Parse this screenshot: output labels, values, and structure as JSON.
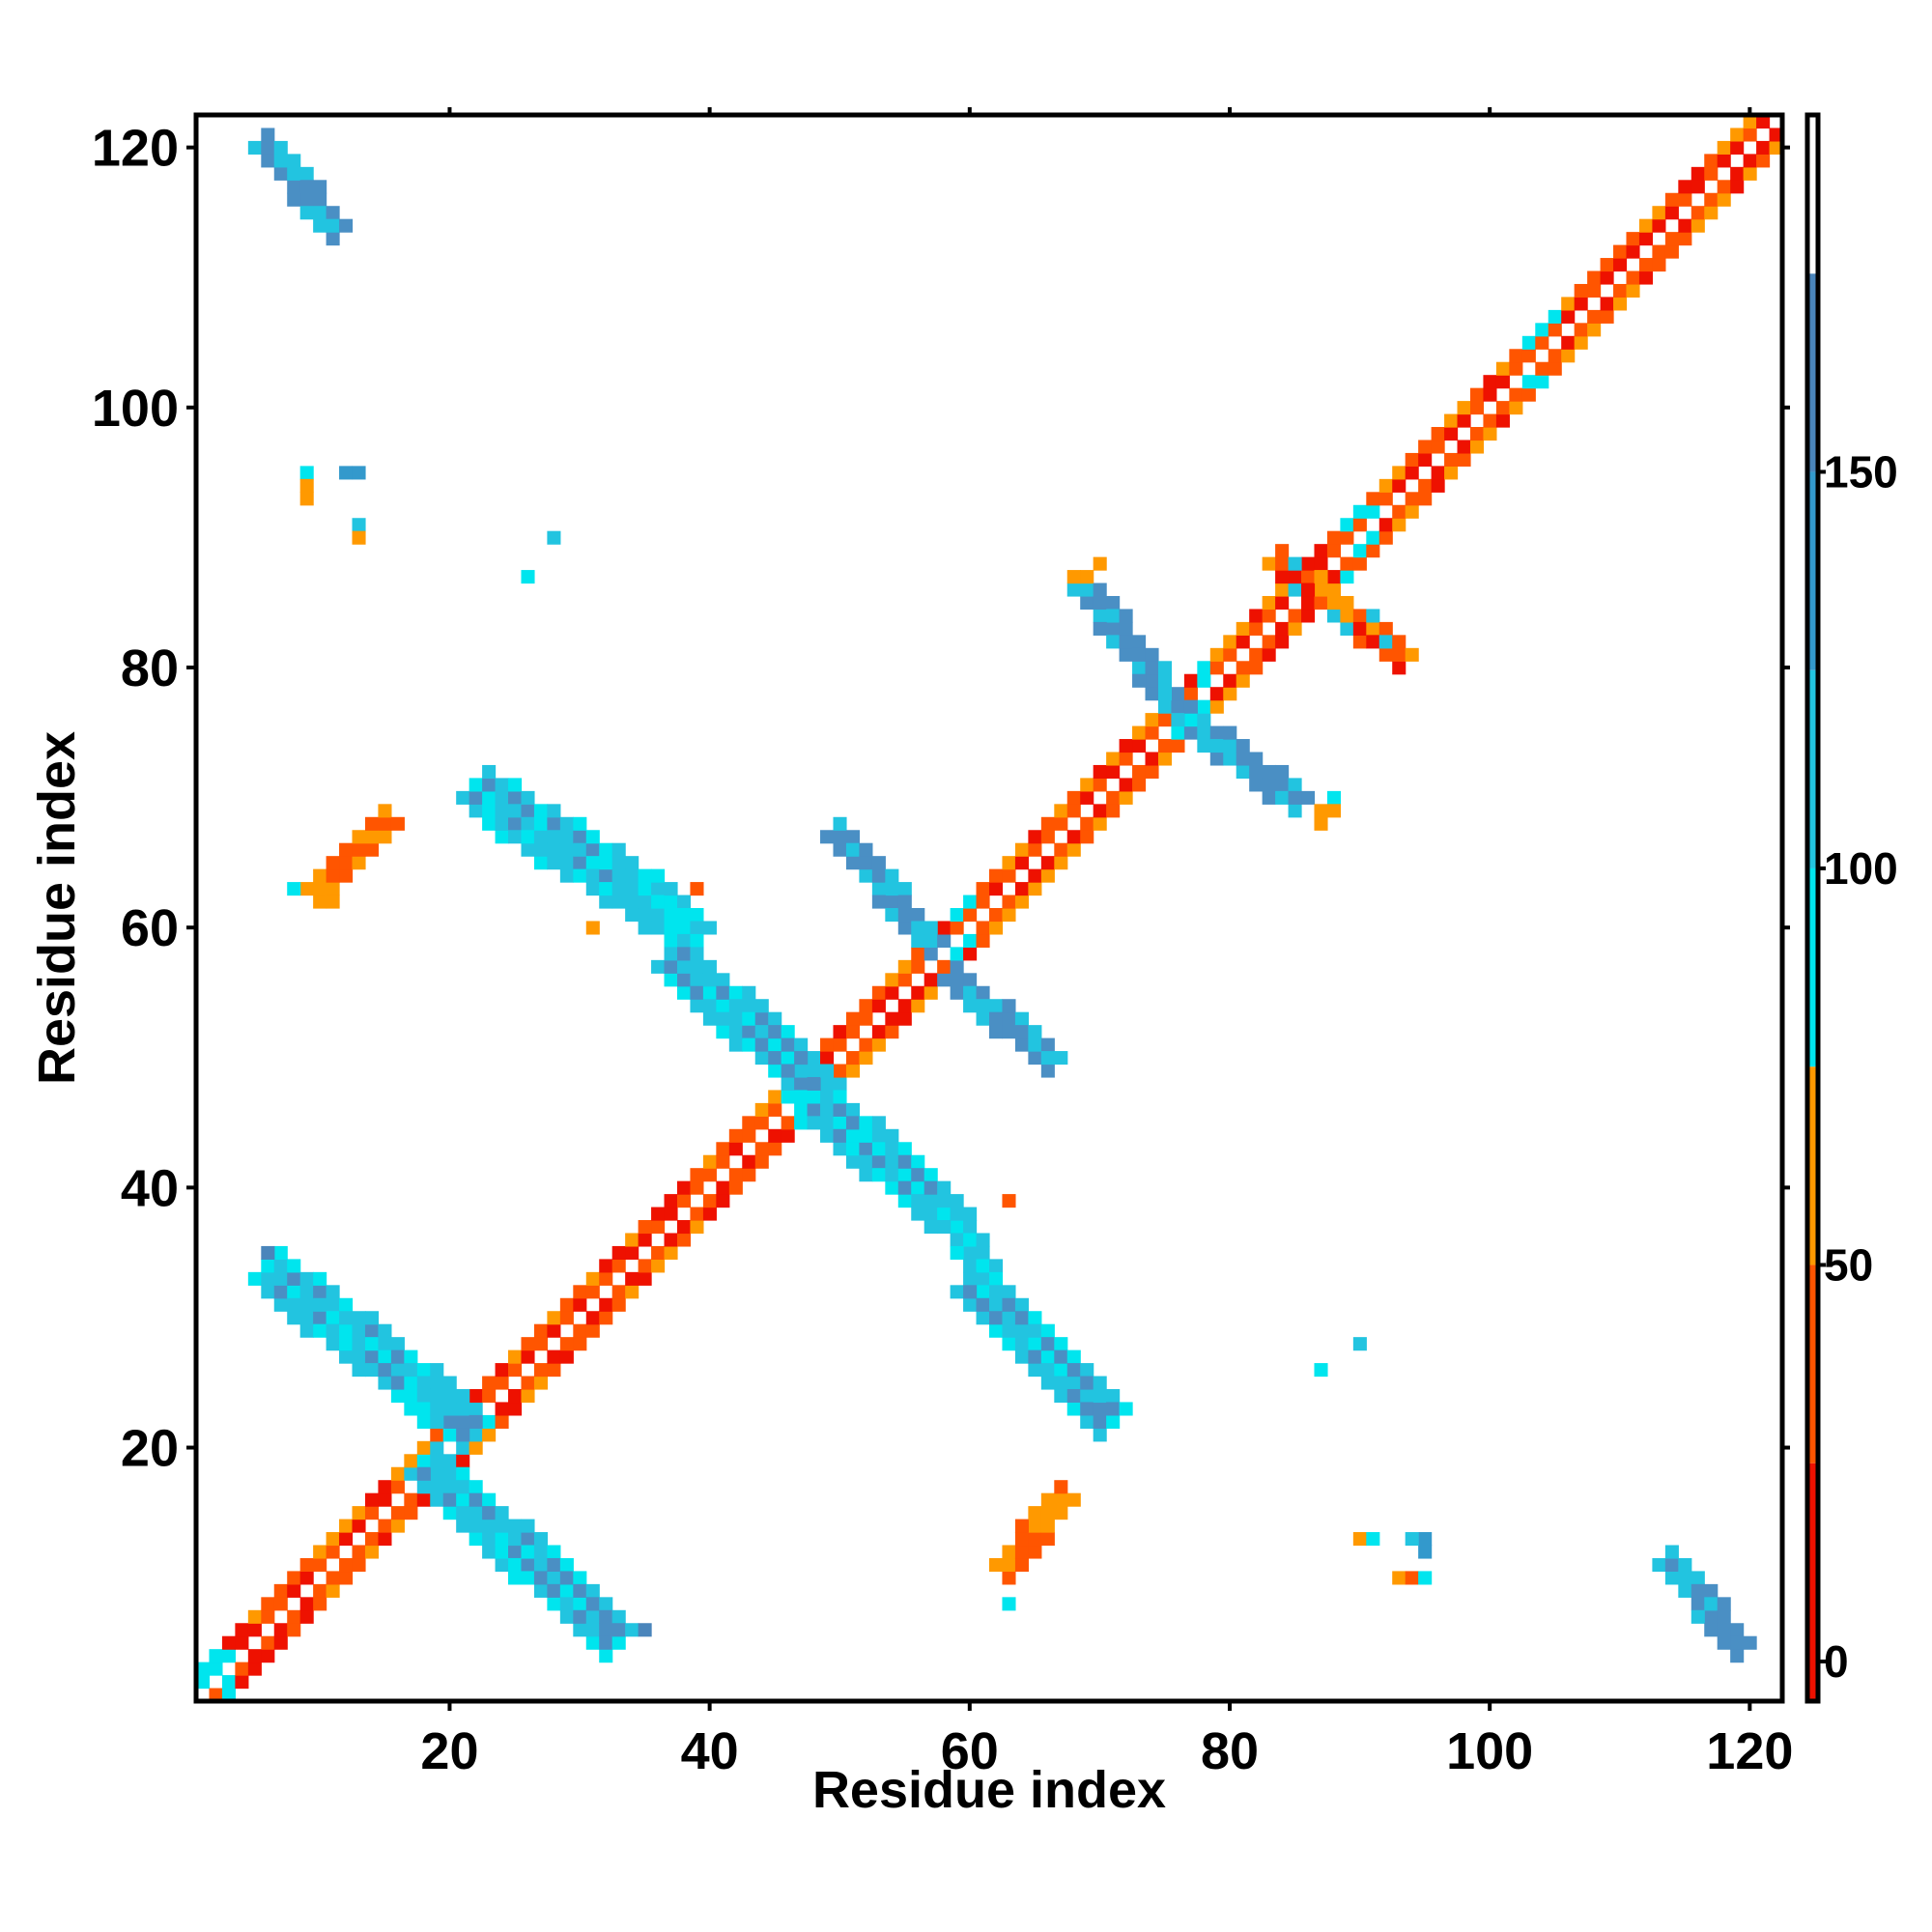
{
  "chart_data": {
    "type": "heatmap",
    "title": "",
    "xlabel": "Residue index",
    "ylabel": "Residue index",
    "xlim": [
      1,
      122
    ],
    "ylim": [
      1,
      122
    ],
    "x_ticks": [
      20,
      40,
      60,
      80,
      100,
      120
    ],
    "y_ticks": [
      20,
      40,
      60,
      80,
      100,
      120
    ],
    "grid": false,
    "colorbar": {
      "ticks": [
        0,
        50,
        100,
        150
      ],
      "range": [
        -5,
        195
      ],
      "segments": [
        {
          "from": -5,
          "to": 25,
          "color": "#ee1100"
        },
        {
          "from": 25,
          "to": 50,
          "color": "#ff5500"
        },
        {
          "from": 50,
          "to": 75,
          "color": "#ff9900"
        },
        {
          "from": 75,
          "to": 100,
          "color": "#00e5ee"
        },
        {
          "from": 100,
          "to": 125,
          "color": "#22c4e0"
        },
        {
          "from": 125,
          "to": 150,
          "color": "#3399cc"
        },
        {
          "from": 150,
          "to": 175,
          "color": "#4a85bb"
        },
        {
          "from": 175,
          "to": 195,
          "color": "#ffffff"
        }
      ]
    },
    "colors": {
      "red": "#ee1100",
      "orange_red": "#ff5500",
      "orange": "#ff9900",
      "cyan": "#00e5ee",
      "sky_blue": "#22c4e0",
      "steel_blue": "#4a8fc4"
    },
    "features": [
      {
        "kind": "diagonal",
        "from": [
          1,
          1
        ],
        "to": [
          122,
          122
        ],
        "half_width": 2
      },
      {
        "kind": "band",
        "from": [
          6,
          120
        ],
        "to": [
          11,
          114
        ],
        "half_width": 1.3,
        "color": "steel_blue"
      },
      {
        "kind": "band",
        "from": [
          7,
          33
        ],
        "to": [
          21,
          22
        ],
        "half_width": 1.5,
        "color": "steel_blue"
      },
      {
        "kind": "band",
        "from": [
          19,
          18
        ],
        "to": [
          32,
          6
        ],
        "half_width": 1.5,
        "color": "steel_blue"
      },
      {
        "kind": "band",
        "from": [
          23,
          70
        ],
        "to": [
          37,
          61
        ],
        "half_width": 1.5,
        "color": "steel_blue"
      },
      {
        "kind": "band",
        "from": [
          35,
          61
        ],
        "to": [
          39,
          60
        ],
        "half_width": 1.0,
        "color": "sky_blue"
      },
      {
        "kind": "band",
        "from": [
          38,
          57
        ],
        "to": [
          48,
          48
        ],
        "half_width": 1.4,
        "color": "steel_blue"
      },
      {
        "kind": "band",
        "from": [
          49,
          46
        ],
        "to": [
          57,
          39
        ],
        "half_width": 1.4,
        "color": "steel_blue"
      },
      {
        "kind": "band",
        "from": [
          50,
          67
        ],
        "to": [
          57,
          59
        ],
        "half_width": 1.3,
        "color": "steel_blue"
      },
      {
        "kind": "band",
        "from": [
          59,
          56
        ],
        "to": [
          66,
          50
        ],
        "half_width": 1.3,
        "color": "steel_blue"
      },
      {
        "kind": "band",
        "from": [
          59,
          38
        ],
        "to": [
          61,
          33
        ],
        "half_width": 1.0,
        "color": "sky_blue"
      },
      {
        "kind": "band",
        "from": [
          61,
          32
        ],
        "to": [
          70,
          23
        ],
        "half_width": 1.5,
        "color": "steel_blue"
      },
      {
        "kind": "band",
        "from": [
          69,
          86
        ],
        "to": [
          76,
          77
        ],
        "half_width": 1.3,
        "color": "steel_blue"
      },
      {
        "kind": "band",
        "from": [
          78,
          75
        ],
        "to": [
          85,
          70
        ],
        "half_width": 1.3,
        "color": "steel_blue"
      },
      {
        "kind": "band",
        "from": [
          84,
          88
        ],
        "to": [
          93,
          81
        ],
        "half_width": 1.2,
        "color": "orange_mix"
      },
      {
        "kind": "band",
        "from": [
          114,
          11
        ],
        "to": [
          119,
          5
        ],
        "half_width": 1.3,
        "color": "steel_blue"
      },
      {
        "kind": "band",
        "from": [
          10,
          63
        ],
        "to": [
          15,
          68
        ],
        "half_width": 0.7,
        "color": "orange"
      },
      {
        "kind": "band",
        "from": [
          63,
          11
        ],
        "to": [
          67,
          16
        ],
        "half_width": 0.7,
        "color": "orange"
      }
    ],
    "isolated_points": [
      {
        "x": 9,
        "y": 95,
        "value": 95
      },
      {
        "x": 9,
        "y": 94,
        "value": 60
      },
      {
        "x": 9,
        "y": 93,
        "value": 65
      },
      {
        "x": 12,
        "y": 95,
        "value": 130
      },
      {
        "x": 13,
        "y": 95,
        "value": 140
      },
      {
        "x": 13,
        "y": 91,
        "value": 110
      },
      {
        "x": 13,
        "y": 90,
        "value": 60
      },
      {
        "x": 28,
        "y": 90,
        "value": 100
      },
      {
        "x": 26,
        "y": 87,
        "value": 95
      },
      {
        "x": 8,
        "y": 63,
        "value": 90
      },
      {
        "x": 10,
        "y": 63,
        "value": 60
      },
      {
        "x": 11,
        "y": 63,
        "value": 65
      },
      {
        "x": 11,
        "y": 62,
        "value": 60
      },
      {
        "x": 39,
        "y": 63,
        "value": 40
      },
      {
        "x": 31,
        "y": 60,
        "value": 60
      },
      {
        "x": 6,
        "y": 35,
        "value": 170
      },
      {
        "x": 35,
        "y": 6,
        "value": 170
      },
      {
        "x": 63,
        "y": 39,
        "value": 40
      },
      {
        "x": 63,
        "y": 8,
        "value": 90
      },
      {
        "x": 63,
        "y": 11,
        "value": 65
      },
      {
        "x": 62,
        "y": 11,
        "value": 60
      },
      {
        "x": 90,
        "y": 28,
        "value": 100
      },
      {
        "x": 87,
        "y": 26,
        "value": 95
      },
      {
        "x": 90,
        "y": 13,
        "value": 60
      },
      {
        "x": 91,
        "y": 13,
        "value": 95
      },
      {
        "x": 95,
        "y": 13,
        "value": 140
      },
      {
        "x": 95,
        "y": 12,
        "value": 130
      },
      {
        "x": 94,
        "y": 13,
        "value": 110
      },
      {
        "x": 93,
        "y": 10,
        "value": 60
      },
      {
        "x": 94,
        "y": 10,
        "value": 40
      },
      {
        "x": 95,
        "y": 10,
        "value": 95
      },
      {
        "x": 68,
        "y": 87,
        "value": 60
      },
      {
        "x": 69,
        "y": 87,
        "value": 65
      },
      {
        "x": 70,
        "y": 88,
        "value": 65
      },
      {
        "x": 87,
        "y": 68,
        "value": 60
      },
      {
        "x": 87,
        "y": 69,
        "value": 65
      },
      {
        "x": 88,
        "y": 70,
        "value": 95
      },
      {
        "x": 88,
        "y": 69,
        "value": 60
      }
    ]
  }
}
